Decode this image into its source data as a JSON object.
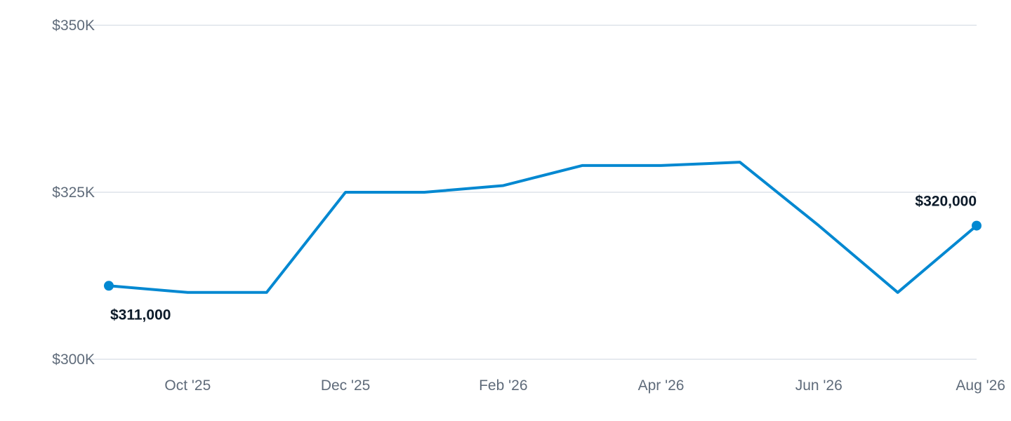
{
  "chart_data": {
    "type": "line",
    "x": [
      "Sep '25",
      "Oct '25",
      "Nov '25",
      "Dec '25",
      "Jan '26",
      "Feb '26",
      "Mar '26",
      "Apr '26",
      "May '26",
      "Jun '26",
      "Jul '26",
      "Aug '26"
    ],
    "series": [
      {
        "values": [
          311000,
          310000,
          310000,
          325000,
          325000,
          326000,
          329000,
          329000,
          329500,
          320000,
          310000,
          320000
        ],
        "color": "#0288d1"
      }
    ],
    "ylim": [
      300000,
      350000
    ],
    "y_ticks": [
      {
        "value": 350000,
        "label": "$350K"
      },
      {
        "value": 325000,
        "label": "$325K"
      },
      {
        "value": 300000,
        "label": "$300K"
      }
    ],
    "x_ticks": [
      {
        "index": 1,
        "label": "Oct '25"
      },
      {
        "index": 3,
        "label": "Dec '25"
      },
      {
        "index": 5,
        "label": "Feb '26"
      },
      {
        "index": 7,
        "label": "Apr '26"
      },
      {
        "index": 9,
        "label": "Jun '26"
      },
      {
        "index": 11,
        "label": "Aug '26"
      }
    ],
    "data_labels": [
      {
        "index": 0,
        "label": "$311,000"
      },
      {
        "index": 11,
        "label": "$320,000"
      }
    ],
    "grid": true,
    "legend": "none",
    "title": "",
    "xlabel": "",
    "ylabel": ""
  }
}
